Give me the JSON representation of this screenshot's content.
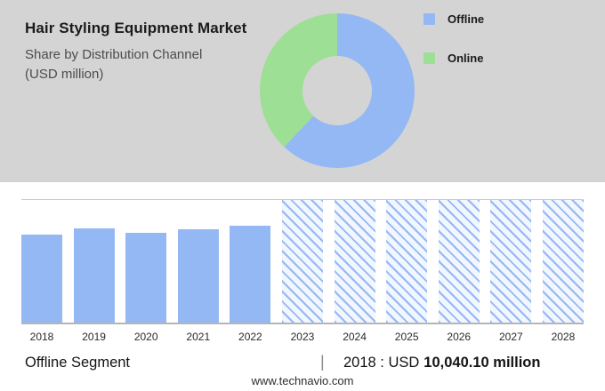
{
  "colors": {
    "panel_bg": "#d4d4d4",
    "offline_blue": "#94b8f4",
    "online_green": "#9ddf94",
    "axis_gray": "#b5b5b5"
  },
  "header": {
    "title": "Hair Styling Equipment Market",
    "subtitle_line1": "Share by Distribution Channel",
    "subtitle_line2": "(USD million)"
  },
  "legend": [
    {
      "label": "Offline",
      "color": "#94b8f4"
    },
    {
      "label": "Online",
      "color": "#9ddf94"
    }
  ],
  "chart_data": [
    {
      "type": "pie",
      "donut": true,
      "title": "Share by Distribution Channel (USD million)",
      "labels": [
        "Offline",
        "Online"
      ],
      "values_pct": [
        62,
        38
      ],
      "colors": [
        "#94b8f4",
        "#9ddf94"
      ],
      "legend_position": "right",
      "note": "segment shares estimated from arc angles; no data labels shown"
    },
    {
      "type": "bar",
      "categories": [
        "2018",
        "2019",
        "2020",
        "2021",
        "2022",
        "2023",
        "2024",
        "2025",
        "2026",
        "2027",
        "2028"
      ],
      "values_relative_pct": [
        72,
        77,
        73,
        76,
        79,
        100,
        100,
        100,
        100,
        100,
        100
      ],
      "values_usd_million_estimated": [
        10040.1,
        10700,
        10180,
        10600,
        11000,
        13900,
        13900,
        13900,
        13900,
        13900,
        13900
      ],
      "hatched_from": "2023",
      "xlabel": "",
      "ylabel": "",
      "grid": false,
      "note": "2023-2028 are hatched forecast bars of equal full height; only the 2018 value is labeled (in footer)"
    }
  ],
  "footer": {
    "segment_label": "Offline Segment",
    "separator": "|",
    "value_prefix": "2018 : USD",
    "value_bold": "10,040.10 million",
    "website": "www.technavio.com"
  }
}
